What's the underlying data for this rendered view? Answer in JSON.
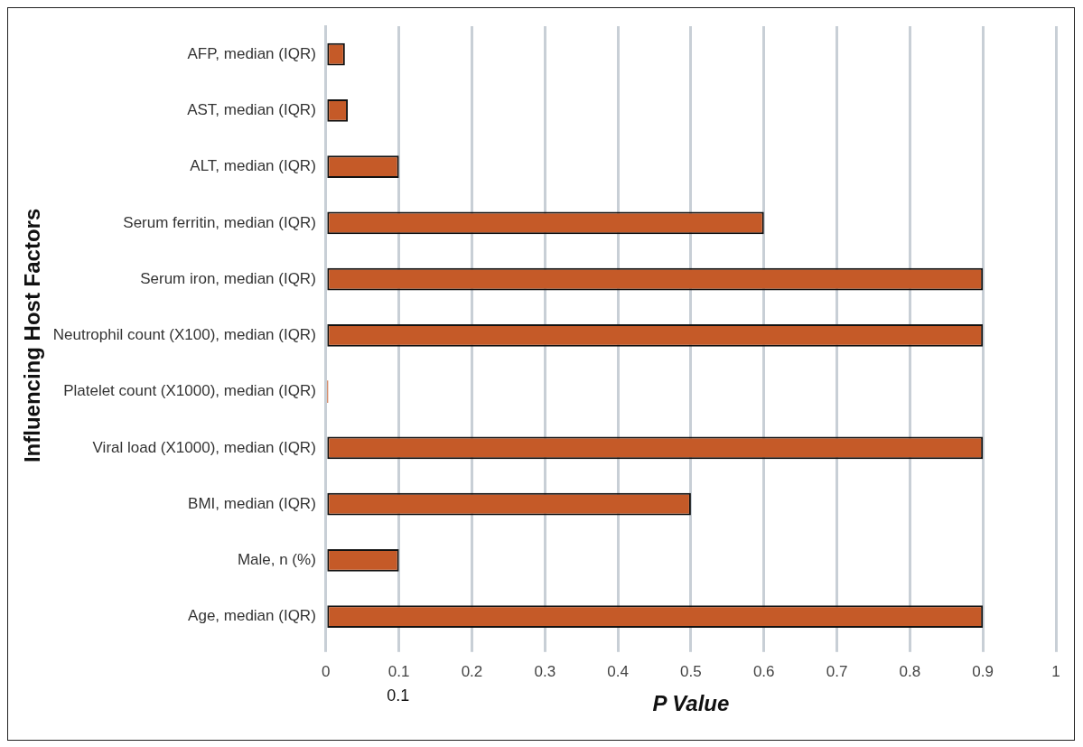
{
  "chart_data": {
    "type": "bar",
    "orientation": "horizontal",
    "xlabel": "P Value",
    "ylabel": "Influencing Host Factors",
    "categories": [
      "AFP, median (IQR)",
      "AST, median (IQR)",
      "ALT, median (IQR)",
      "Serum ferritin, median (IQR)",
      "Serum iron, median (IQR)",
      "Neutrophil count (X100), median (IQR)",
      "Platelet count (X1000), median (IQR)",
      "Viral load (X1000), median (IQR)",
      "BMI, median (IQR)",
      "Male, n (%)",
      "Age, median (IQR)"
    ],
    "values": [
      0.026,
      0.03,
      0.1,
      0.6,
      0.9,
      0.9,
      0.003,
      0.9,
      0.5,
      0.1,
      0.9
    ],
    "color": "#c55a28",
    "xlim": [
      0,
      1
    ],
    "xticks": [
      0,
      0.1,
      0.2,
      0.3,
      0.4,
      0.5,
      0.6,
      0.7,
      0.8,
      0.9,
      1
    ],
    "grid": "x",
    "legend": false,
    "annotations": [
      "0.1"
    ]
  }
}
